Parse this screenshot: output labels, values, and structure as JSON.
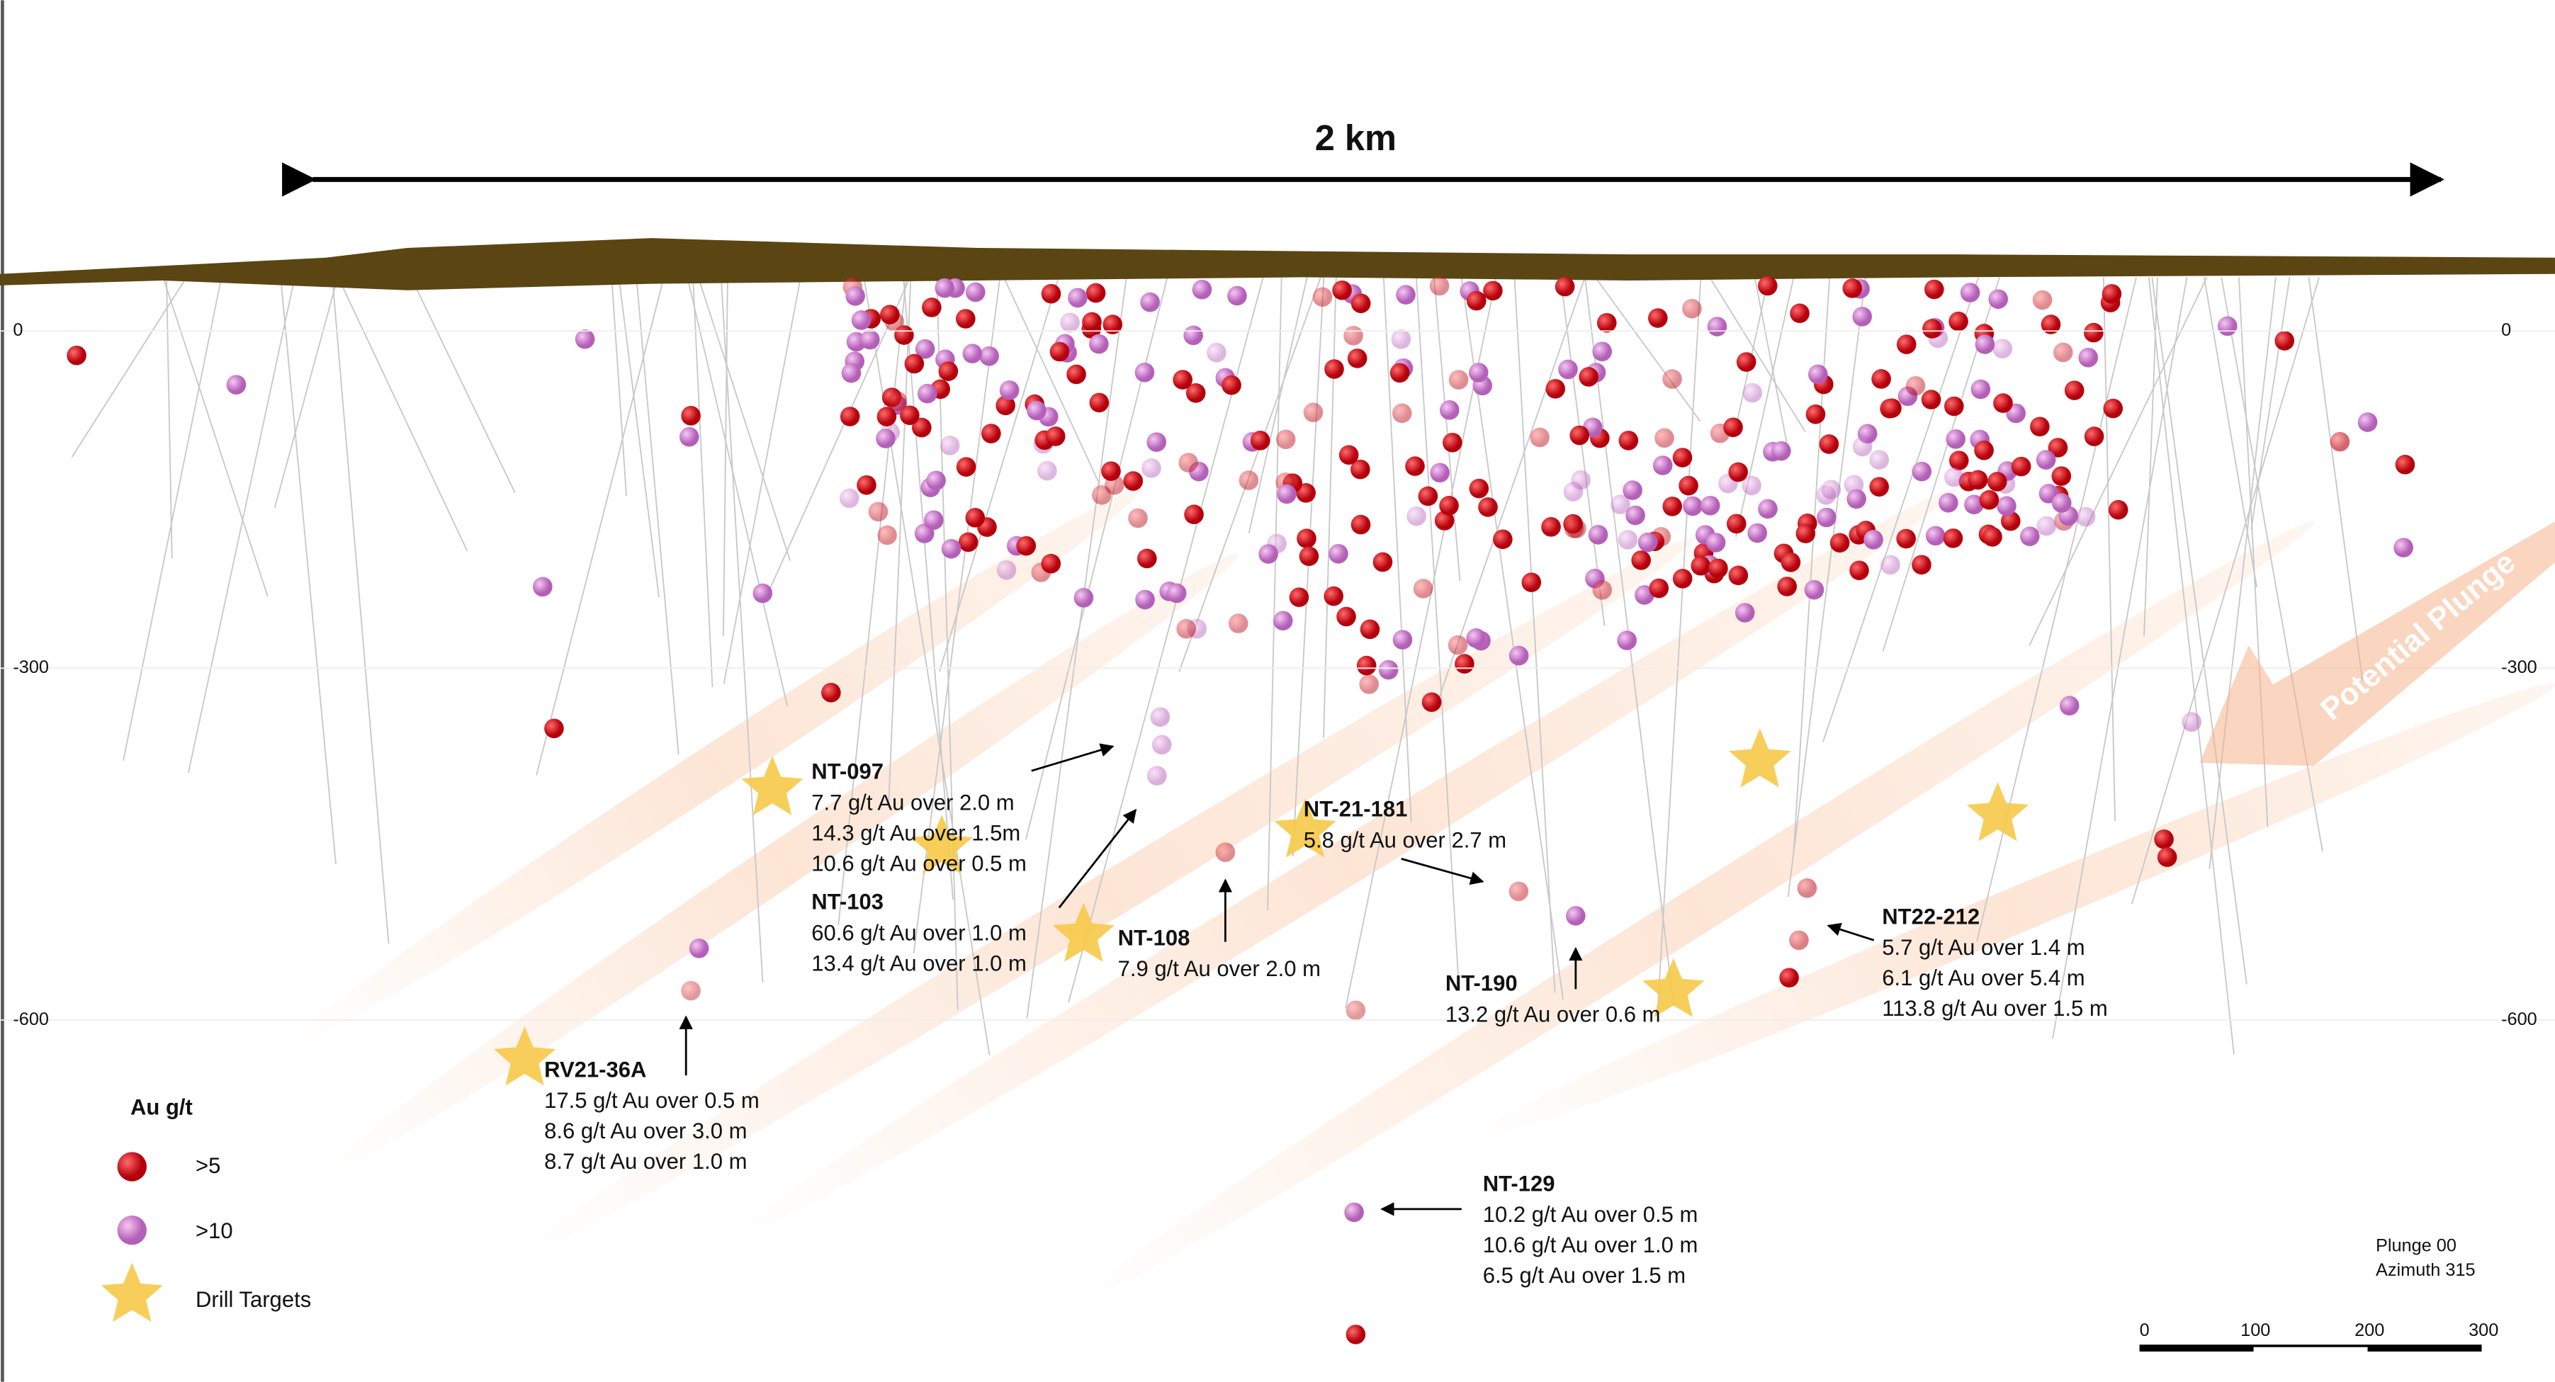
{
  "scale_label": "2 km",
  "depth_labels": {
    "left": [
      "0",
      "-300",
      "-600"
    ],
    "right": [
      "0",
      "-300",
      "-600"
    ]
  },
  "plunge_label": "Potential Plunge",
  "annotations": [
    {
      "hole": "NT-097",
      "lines": [
        "7.7 g/t Au over 2.0 m",
        "14.3 g/t Au over 1.5m",
        "10.6 g/t Au over 0.5 m"
      ]
    },
    {
      "hole": "NT-103",
      "lines": [
        "60.6 g/t Au over 1.0 m",
        "13.4 g/t Au over 1.0 m"
      ]
    },
    {
      "hole": "NT-108",
      "lines": [
        "7.9 g/t Au over 2.0 m"
      ]
    },
    {
      "hole": "NT-21-181",
      "lines": [
        "5.8 g/t Au over 2.7 m"
      ]
    },
    {
      "hole": "NT-190",
      "lines": [
        "13.2 g/t Au over 0.6 m"
      ]
    },
    {
      "hole": "NT22-212",
      "lines": [
        "5.7 g/t Au over 1.4 m",
        "6.1 g/t Au over 5.4 m",
        "113.8 g/t Au over 1.5 m"
      ]
    },
    {
      "hole": "RV21-36A",
      "lines": [
        "17.5 g/t Au over 0.5 m",
        "8.6 g/t Au over 3.0 m",
        "8.7 g/t Au over 1.0 m"
      ]
    },
    {
      "hole": "NT-129",
      "lines": [
        "10.2 g/t  Au over 0.5 m",
        "10.6 g/t Au over 1.0 m",
        "6.5 g/t Au over 1.5 m"
      ]
    }
  ],
  "legend": {
    "title": "Au g/t",
    "items": [
      ">5",
      ">10",
      "Drill Targets"
    ]
  },
  "view": {
    "plunge": "Plunge 00",
    "azimuth": "Azimuth 315"
  },
  "scale_bar": [
    "0",
    "100",
    "200",
    "300"
  ]
}
